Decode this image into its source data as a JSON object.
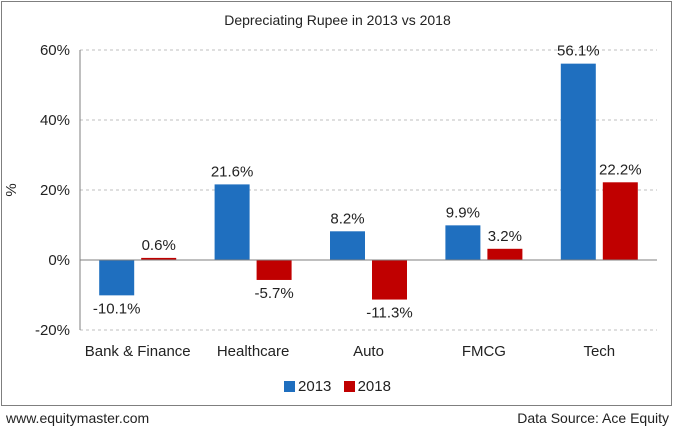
{
  "chart_data": {
    "type": "bar",
    "title": "Depreciating Rupee in 2013 vs 2018",
    "ylabel": "%",
    "ylim": [
      -20,
      60
    ],
    "yticks": [
      -20,
      0,
      20,
      40,
      60
    ],
    "ytick_labels": [
      "-20%",
      "0%",
      "20%",
      "40%",
      "60%"
    ],
    "categories": [
      "Bank & Finance",
      "Healthcare",
      "Auto",
      "FMCG",
      "Tech"
    ],
    "series": [
      {
        "name": "2013",
        "color": "#1f6fbf",
        "values": [
          -10.1,
          21.6,
          8.2,
          9.9,
          56.1
        ],
        "labels": [
          "-10.1%",
          "21.6%",
          "8.2%",
          "9.9%",
          "56.1%"
        ]
      },
      {
        "name": "2018",
        "color": "#c00000",
        "values": [
          0.6,
          -5.7,
          -11.3,
          3.2,
          22.2
        ],
        "labels": [
          "0.6%",
          "-5.7%",
          "-11.3%",
          "3.2%",
          "22.2%"
        ]
      }
    ],
    "grid": true,
    "legend_position": "bottom"
  },
  "footer": {
    "left": "www.equitymaster.com",
    "right": "Data Source: Ace Equity"
  }
}
